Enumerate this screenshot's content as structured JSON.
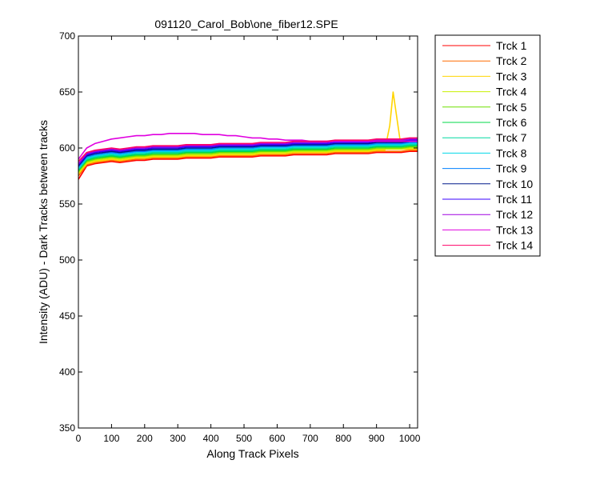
{
  "chart_data": {
    "type": "line",
    "title": "091120_Carol_Bob\\one_fiber12.SPE",
    "xlabel": "Along Track Pixels",
    "ylabel": "Intensity (ADU) - Dark Tracks between tracks",
    "xlim": [
      0,
      1024
    ],
    "ylim": [
      350,
      700
    ],
    "x_ticks": [
      0,
      100,
      200,
      300,
      400,
      500,
      600,
      700,
      800,
      900,
      1000
    ],
    "y_ticks": [
      350,
      400,
      450,
      500,
      550,
      600,
      650,
      700
    ],
    "grid": false,
    "legend_position": "outside-right-top",
    "x": [
      0,
      25,
      50,
      75,
      100,
      125,
      150,
      175,
      200,
      225,
      250,
      275,
      300,
      325,
      350,
      375,
      400,
      425,
      450,
      475,
      500,
      525,
      550,
      575,
      600,
      625,
      650,
      675,
      700,
      725,
      750,
      775,
      800,
      825,
      850,
      875,
      900,
      925,
      940,
      950,
      975,
      1000,
      1023
    ],
    "series": [
      {
        "name": "Trck 1",
        "color": "#ff0000",
        "values": [
          572,
          584,
          586,
          587,
          588,
          587,
          588,
          589,
          589,
          590,
          590,
          590,
          590,
          591,
          591,
          591,
          591,
          592,
          592,
          592,
          592,
          592,
          593,
          593,
          593,
          593,
          594,
          594,
          594,
          594,
          594,
          595,
          595,
          595,
          595,
          595,
          596,
          596,
          596,
          596,
          596,
          597,
          597
        ]
      },
      {
        "name": "Trck 2",
        "color": "#ff6a00",
        "values": [
          575,
          585,
          587,
          588,
          589,
          588,
          589,
          590,
          590,
          591,
          591,
          591,
          591,
          592,
          592,
          592,
          592,
          593,
          593,
          593,
          593,
          593,
          594,
          594,
          594,
          594,
          595,
          595,
          595,
          595,
          595,
          596,
          596,
          596,
          596,
          596,
          597,
          597,
          597,
          597,
          597,
          598,
          598
        ]
      },
      {
        "name": "Trck 3",
        "color": "#ffd400",
        "values": [
          577,
          586,
          588,
          589,
          590,
          589,
          590,
          591,
          591,
          592,
          592,
          592,
          592,
          593,
          593,
          593,
          593,
          594,
          594,
          594,
          594,
          594,
          595,
          595,
          595,
          595,
          596,
          596,
          596,
          596,
          596,
          597,
          597,
          597,
          597,
          597,
          598,
          598,
          620,
          650,
          599,
          599,
          599
        ]
      },
      {
        "name": "Trck 4",
        "color": "#c8f000",
        "values": [
          578,
          587,
          589,
          590,
          591,
          590,
          591,
          592,
          592,
          593,
          593,
          593,
          593,
          594,
          594,
          594,
          594,
          595,
          595,
          595,
          595,
          595,
          596,
          596,
          596,
          596,
          597,
          597,
          597,
          597,
          597,
          598,
          598,
          598,
          598,
          598,
          599,
          599,
          599,
          599,
          599,
          600,
          600
        ]
      },
      {
        "name": "Trck 5",
        "color": "#6ee000",
        "values": [
          579,
          588,
          590,
          591,
          592,
          591,
          592,
          593,
          593,
          594,
          594,
          594,
          594,
          595,
          595,
          595,
          595,
          596,
          596,
          596,
          596,
          596,
          597,
          597,
          597,
          597,
          598,
          598,
          598,
          598,
          598,
          599,
          599,
          599,
          599,
          599,
          600,
          600,
          600,
          600,
          600,
          601,
          601
        ]
      },
      {
        "name": "Trck 6",
        "color": "#00d84a",
        "values": [
          580,
          589,
          591,
          592,
          593,
          592,
          593,
          594,
          594,
          595,
          595,
          595,
          595,
          596,
          596,
          596,
          596,
          597,
          597,
          597,
          597,
          597,
          598,
          598,
          598,
          598,
          599,
          599,
          599,
          599,
          599,
          600,
          600,
          600,
          600,
          600,
          601,
          601,
          601,
          601,
          601,
          602,
          602
        ]
      },
      {
        "name": "Trck 7",
        "color": "#00d8a0",
        "values": [
          581,
          590,
          592,
          593,
          594,
          593,
          594,
          595,
          595,
          596,
          596,
          596,
          596,
          597,
          597,
          597,
          597,
          598,
          598,
          598,
          598,
          598,
          599,
          599,
          599,
          599,
          600,
          600,
          600,
          600,
          600,
          601,
          601,
          601,
          601,
          601,
          602,
          602,
          602,
          602,
          602,
          603,
          603
        ]
      },
      {
        "name": "Trck 8",
        "color": "#00d8e8",
        "values": [
          582,
          591,
          593,
          594,
          595,
          594,
          595,
          596,
          596,
          597,
          597,
          597,
          597,
          598,
          598,
          598,
          598,
          599,
          599,
          599,
          599,
          599,
          600,
          600,
          600,
          600,
          601,
          601,
          601,
          601,
          601,
          602,
          602,
          602,
          602,
          602,
          603,
          603,
          603,
          603,
          603,
          604,
          604
        ]
      },
      {
        "name": "Trck 9",
        "color": "#0080ff",
        "values": [
          583,
          592,
          594,
          595,
          596,
          595,
          596,
          597,
          597,
          598,
          598,
          598,
          598,
          599,
          599,
          599,
          599,
          600,
          600,
          600,
          600,
          600,
          601,
          601,
          601,
          601,
          602,
          602,
          602,
          602,
          602,
          603,
          603,
          603,
          603,
          603,
          604,
          604,
          604,
          604,
          604,
          605,
          605
        ]
      },
      {
        "name": "Trck 10",
        "color": "#001a8c",
        "values": [
          584,
          593,
          595,
          596,
          597,
          596,
          597,
          598,
          598,
          599,
          599,
          599,
          599,
          600,
          600,
          600,
          600,
          601,
          601,
          601,
          601,
          601,
          602,
          602,
          602,
          602,
          603,
          603,
          603,
          603,
          603,
          604,
          604,
          604,
          604,
          604,
          605,
          605,
          605,
          605,
          605,
          606,
          606
        ]
      },
      {
        "name": "Trck 11",
        "color": "#3a00ff",
        "values": [
          585,
          594,
          596,
          597,
          598,
          597,
          598,
          599,
          599,
          600,
          600,
          600,
          600,
          601,
          601,
          601,
          601,
          602,
          602,
          602,
          602,
          602,
          603,
          603,
          603,
          603,
          604,
          604,
          604,
          604,
          604,
          605,
          605,
          605,
          605,
          605,
          606,
          606,
          606,
          606,
          606,
          607,
          607
        ]
      },
      {
        "name": "Trck 12",
        "color": "#a000e0",
        "values": [
          586,
          595,
          597,
          598,
          599,
          598,
          599,
          600,
          600,
          601,
          601,
          601,
          601,
          602,
          602,
          602,
          602,
          603,
          603,
          603,
          603,
          603,
          604,
          604,
          604,
          604,
          605,
          605,
          605,
          605,
          605,
          606,
          606,
          606,
          606,
          606,
          607,
          607,
          607,
          607,
          607,
          608,
          608
        ]
      },
      {
        "name": "Trck 13",
        "color": "#e000e0",
        "values": [
          590,
          600,
          604,
          606,
          608,
          609,
          610,
          611,
          611,
          612,
          612,
          613,
          613,
          613,
          613,
          612,
          612,
          612,
          611,
          611,
          610,
          609,
          609,
          608,
          608,
          607,
          607,
          607,
          606,
          606,
          606,
          606,
          606,
          606,
          606,
          606,
          606,
          606,
          606,
          606,
          606,
          606,
          606
        ]
      },
      {
        "name": "Trck 14",
        "color": "#ff0066",
        "values": [
          588,
          596,
          598,
          599,
          600,
          599,
          600,
          601,
          601,
          602,
          602,
          602,
          602,
          603,
          603,
          603,
          603,
          604,
          604,
          604,
          604,
          604,
          605,
          605,
          605,
          605,
          606,
          606,
          606,
          606,
          606,
          607,
          607,
          607,
          607,
          607,
          608,
          608,
          608,
          608,
          608,
          609,
          609
        ]
      }
    ]
  }
}
